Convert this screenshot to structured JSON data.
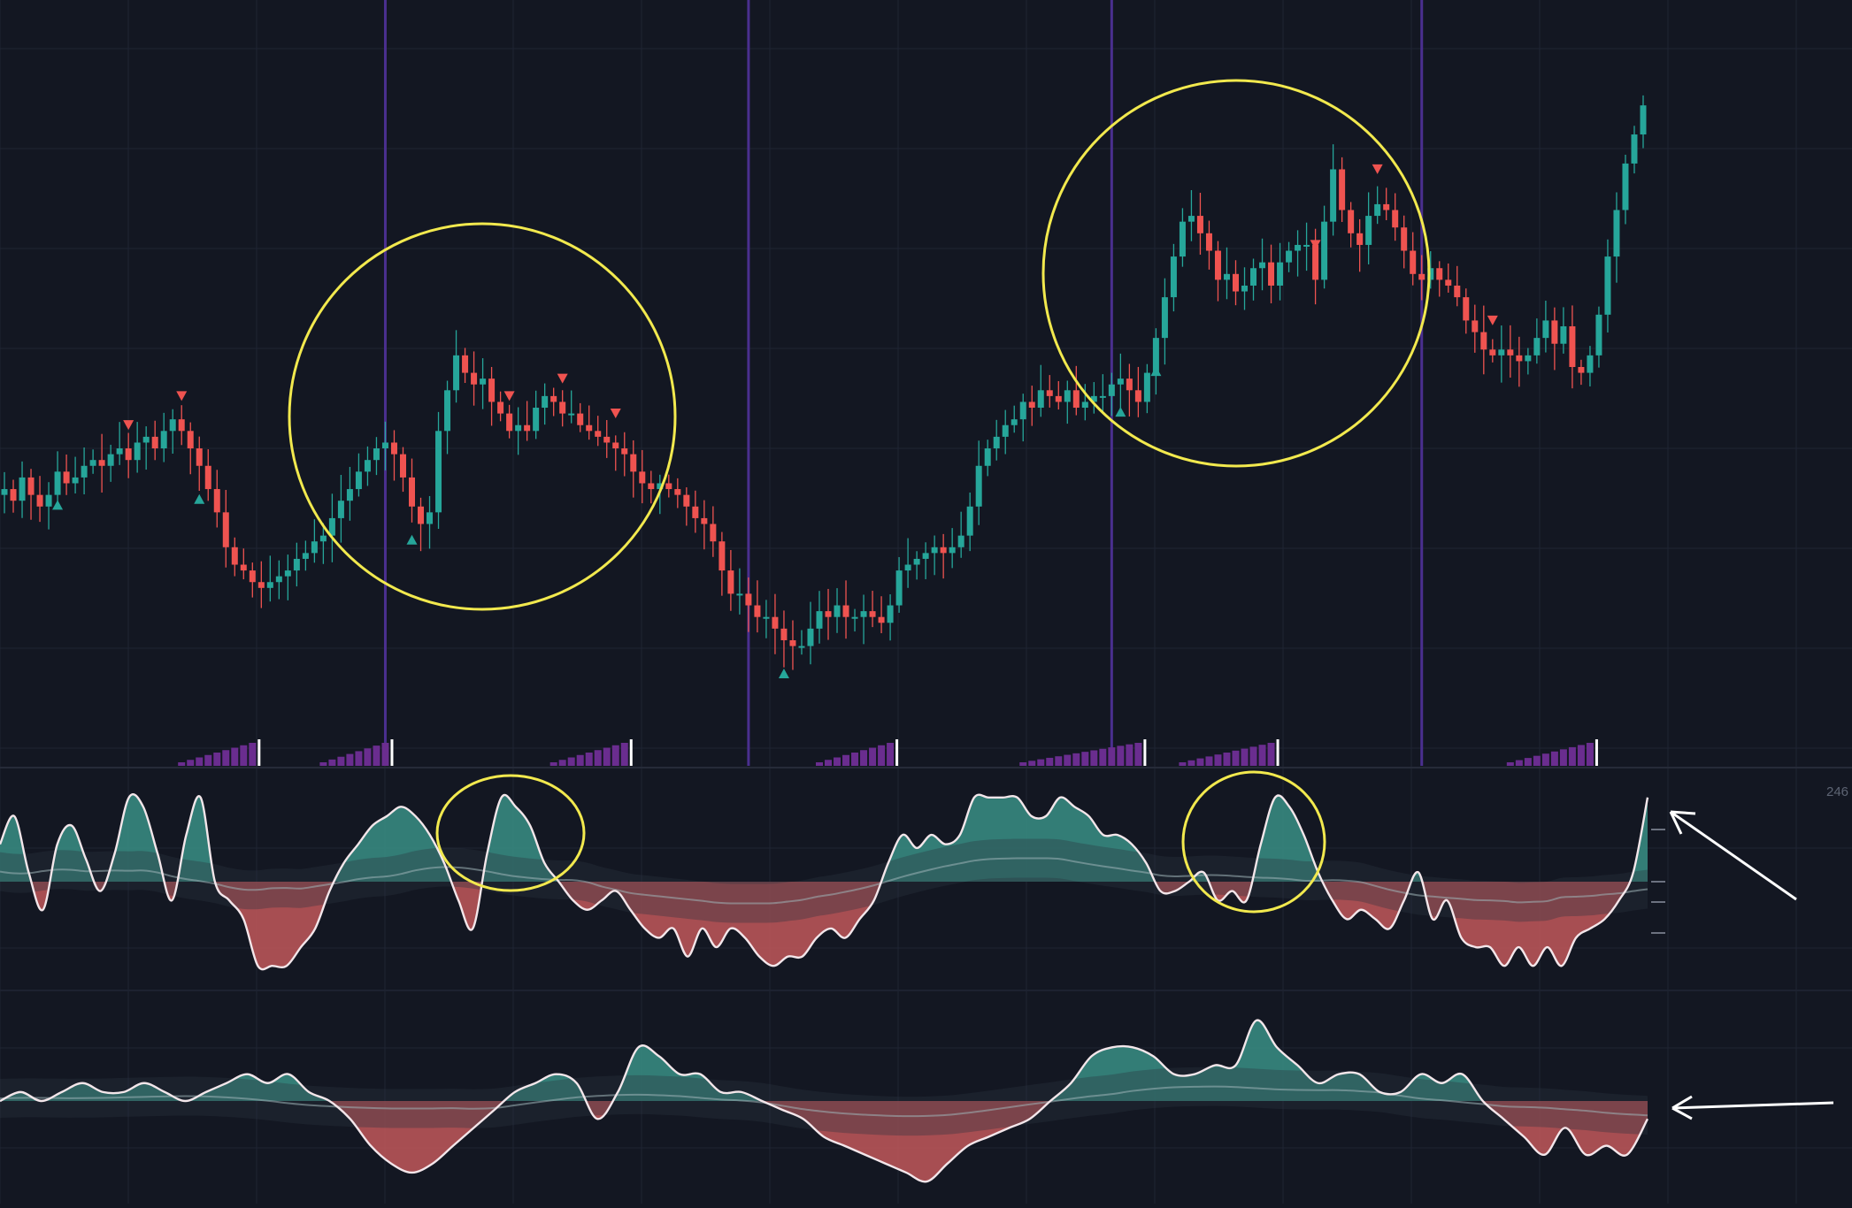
{
  "app": {
    "background": "#131722",
    "grid_color": "#1f2433"
  },
  "colors": {
    "bull": "#26a69a",
    "bear": "#ef5350",
    "teal_fill": "#3a8f85",
    "red_fill": "#c2585a",
    "session_line": "#4a2f8f",
    "highlight": "#f2e94e",
    "annotation_arrow": "#ffffff",
    "volume_bar": "#6a2d8f",
    "band_dark": "#2a3340",
    "band_mid": "#3e4a55"
  },
  "labels": {
    "axis_value": "246"
  },
  "chart_data": [
    {
      "type": "candlestick",
      "title": "",
      "session_separators": [
        43,
        84,
        125,
        160
      ],
      "candle_count": 186,
      "closes": [
        2.6,
        2.4,
        2.8,
        2.5,
        2.3,
        2.5,
        2.9,
        2.7,
        2.8,
        3.0,
        3.1,
        3.0,
        3.2,
        3.3,
        3.1,
        3.4,
        3.5,
        3.3,
        3.6,
        3.8,
        3.6,
        3.3,
        3.0,
        2.6,
        2.2,
        1.6,
        1.3,
        1.2,
        1.0,
        0.9,
        1.0,
        1.1,
        1.2,
        1.4,
        1.5,
        1.7,
        1.8,
        2.1,
        2.4,
        2.6,
        2.9,
        3.1,
        3.3,
        3.4,
        3.2,
        2.8,
        2.3,
        2.0,
        2.2,
        3.6,
        4.3,
        4.9,
        4.6,
        4.4,
        4.5,
        4.1,
        3.9,
        3.6,
        3.7,
        3.6,
        4.0,
        4.2,
        4.1,
        3.9,
        3.9,
        3.7,
        3.6,
        3.5,
        3.4,
        3.3,
        3.2,
        2.9,
        2.7,
        2.6,
        2.7,
        2.6,
        2.5,
        2.3,
        2.1,
        2.0,
        1.7,
        1.2,
        0.8,
        0.8,
        0.6,
        0.4,
        0.4,
        0.2,
        0.0,
        -0.1,
        -0.1,
        0.2,
        0.5,
        0.4,
        0.6,
        0.4,
        0.4,
        0.5,
        0.4,
        0.3,
        0.6,
        1.2,
        1.3,
        1.4,
        1.5,
        1.6,
        1.5,
        1.6,
        1.8,
        2.3,
        3.0,
        3.3,
        3.5,
        3.7,
        3.8,
        4.1,
        4.0,
        4.3,
        4.2,
        4.1,
        4.3,
        4.0,
        4.1,
        4.2,
        4.2,
        4.4,
        4.5,
        4.3,
        4.1,
        4.6,
        5.2,
        5.9,
        6.6,
        7.2,
        7.3,
        7.0,
        6.7,
        6.2,
        6.3,
        6.0,
        6.1,
        6.4,
        6.5,
        6.1,
        6.5,
        6.7,
        6.8,
        6.8,
        6.2,
        7.2,
        8.1,
        7.4,
        7.0,
        6.8,
        7.3,
        7.5,
        7.4,
        7.1,
        6.7,
        6.3,
        6.2,
        6.4,
        6.2,
        6.1,
        5.9,
        5.5,
        5.3,
        5.0,
        4.9,
        5.0,
        4.9,
        4.8,
        4.9,
        5.2,
        5.5,
        5.1,
        5.4,
        4.7,
        4.6,
        4.9,
        5.6,
        6.6,
        7.4,
        8.2,
        8.7,
        9.2
      ],
      "buy_signals": [
        6,
        22,
        46,
        88,
        126,
        130
      ],
      "sell_signals": [
        14,
        20,
        57,
        63,
        69,
        148,
        155,
        168
      ],
      "volume_phases": [
        {
          "start": 20,
          "end": 28
        },
        {
          "start": 36,
          "end": 43
        },
        {
          "start": 62,
          "end": 70
        },
        {
          "start": 92,
          "end": 100
        },
        {
          "start": 115,
          "end": 128
        },
        {
          "start": 133,
          "end": 143
        },
        {
          "start": 170,
          "end": 179
        }
      ]
    },
    {
      "type": "area",
      "title": "",
      "ylim": [
        -5,
        5
      ],
      "values": [
        2.0,
        3.5,
        0.5,
        -1.5,
        2.0,
        3.0,
        1.2,
        -0.5,
        1.5,
        4.5,
        4.0,
        1.5,
        -1.0,
        2.5,
        4.5,
        0.0,
        -1.0,
        -2.0,
        -4.5,
        -4.5,
        -4.5,
        -3.5,
        -2.5,
        -0.5,
        1.0,
        2.0,
        3.0,
        3.5,
        4.0,
        3.5,
        2.5,
        1.0,
        -1.0,
        -2.5,
        1.5,
        4.5,
        4.0,
        3.0,
        1.0,
        0.0,
        -1.0,
        -1.5,
        -1.0,
        -0.5,
        -1.5,
        -2.5,
        -3.0,
        -2.5,
        -4.0,
        -2.5,
        -3.5,
        -2.5,
        -3.0,
        -4.0,
        -4.5,
        -4.0,
        -4.0,
        -3.0,
        -2.5,
        -3.0,
        -2.0,
        -1.0,
        1.0,
        2.5,
        1.8,
        2.5,
        2.0,
        2.5,
        4.5,
        4.5,
        4.5,
        4.5,
        3.5,
        3.5,
        4.5,
        4.0,
        3.5,
        2.5,
        2.5,
        2.0,
        1.0,
        -0.5,
        -0.5,
        0.0,
        0.5,
        -1.0,
        -0.5,
        -1.0,
        2.0,
        4.5,
        4.0,
        2.5,
        0.5,
        -1.0,
        -2.0,
        -1.5,
        -2.0,
        -2.5,
        -1.0,
        0.5,
        -2.0,
        -1.0,
        -3.0,
        -3.5,
        -3.5,
        -4.5,
        -3.5,
        -4.5,
        -3.5,
        -4.5,
        -3.0,
        -2.5,
        -2.0,
        -1.0,
        0.5,
        4.5
      ]
    },
    {
      "type": "area",
      "title": "",
      "ylim": [
        -5,
        5
      ],
      "values": [
        0.0,
        0.5,
        0.0,
        0.5,
        1.0,
        0.5,
        0.5,
        1.0,
        0.5,
        0.0,
        0.5,
        1.0,
        1.5,
        1.0,
        1.5,
        0.5,
        0.0,
        -1.0,
        -2.5,
        -3.5,
        -4.0,
        -3.5,
        -2.5,
        -1.5,
        -0.5,
        0.5,
        1.0,
        1.5,
        1.0,
        -1.0,
        0.5,
        3.0,
        2.5,
        1.5,
        1.5,
        0.5,
        0.5,
        0.0,
        -0.5,
        -1.0,
        -2.0,
        -2.5,
        -3.0,
        -3.5,
        -4.0,
        -4.5,
        -3.5,
        -2.5,
        -2.0,
        -1.5,
        -1.0,
        0.0,
        1.0,
        2.5,
        3.0,
        3.0,
        2.5,
        1.5,
        1.5,
        2.0,
        2.0,
        4.5,
        3.0,
        2.0,
        1.0,
        1.5,
        1.5,
        0.5,
        0.5,
        1.5,
        1.0,
        1.5,
        0.0,
        -1.0,
        -2.0,
        -3.0,
        -1.5,
        -3.0,
        -2.5,
        -3.0,
        -1.0
      ]
    }
  ],
  "annotations": {
    "circles": 4,
    "arrows": 2
  }
}
